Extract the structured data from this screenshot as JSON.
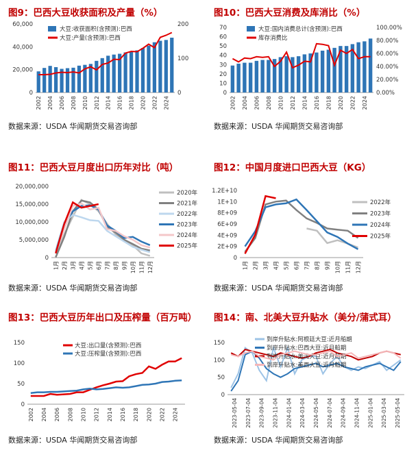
{
  "source_text": "数据来源：USDA 华闻期货交易咨询部",
  "chart_data": [
    {
      "id": "fig9",
      "type": "bar+line",
      "title": "图9：巴西大豆收获面积及产量（%）",
      "categories": [
        "2002",
        "2003",
        "2004",
        "2005",
        "2006",
        "2007",
        "2008",
        "2009",
        "2010",
        "2011",
        "2012",
        "2013",
        "2014",
        "2015",
        "2016",
        "2017",
        "2018",
        "2019",
        "2020",
        "2021",
        "2022",
        "2023",
        "2024",
        "2025"
      ],
      "x_tick_labels": [
        "2002",
        "2004",
        "2006",
        "2008",
        "2010",
        "2012",
        "2014",
        "2016",
        "2018",
        "2020",
        "2022",
        "2024"
      ],
      "series": [
        {
          "name": "大豆:收获面积(含预测):巴西",
          "kind": "bar",
          "axis": "left",
          "color": "#2e75b6",
          "values": [
            18500,
            21500,
            23300,
            22200,
            20700,
            21300,
            21700,
            23500,
            24200,
            25000,
            27700,
            30100,
            32200,
            33200,
            33900,
            35100,
            35800,
            36900,
            38900,
            41000,
            44000,
            45300,
            46000,
            48000
          ]
        },
        {
          "name": "大豆:产量(含预测):巴西",
          "kind": "line",
          "axis": "right",
          "color": "#e00000",
          "values": [
            52,
            52,
            53,
            57,
            59,
            58,
            60,
            57,
            69,
            75,
            66,
            82,
            86,
            97,
            96,
            115,
            120,
            119,
            129,
            141,
            131,
            161,
            167,
            175
          ]
        }
      ],
      "left_axis": {
        "min": 0,
        "max": 60000,
        "ticks": [
          "0",
          "20,000",
          "40,000",
          "60,000"
        ]
      },
      "right_axis": {
        "min": 0,
        "max": 200,
        "ticks": [
          "0",
          "100",
          "200"
        ]
      }
    },
    {
      "id": "fig10",
      "type": "bar+line",
      "title": "图10：巴西大豆消费及库消比（%）",
      "categories": [
        "2002",
        "2003",
        "2004",
        "2005",
        "2006",
        "2007",
        "2008",
        "2009",
        "2010",
        "2011",
        "2012",
        "2013",
        "2014",
        "2015",
        "2016",
        "2017",
        "2018",
        "2019",
        "2020",
        "2021",
        "2022",
        "2023",
        "2024",
        "2025"
      ],
      "x_tick_labels": [
        "2002",
        "2004",
        "2006",
        "2008",
        "2010",
        "2012",
        "2014",
        "2016",
        "2018",
        "2020",
        "2022",
        "2024"
      ],
      "series": [
        {
          "name": "大豆:国内消费总计(含预测):巴西",
          "kind": "bar",
          "axis": "left",
          "color": "#2e75b6",
          "values": [
            29,
            31,
            32,
            32,
            34,
            35,
            35,
            36,
            38,
            39,
            38,
            39,
            41,
            42,
            43,
            45,
            46,
            48,
            50,
            50,
            52,
            54,
            55,
            58
          ]
        },
        {
          "name": "库存消费比",
          "kind": "line",
          "axis": "right",
          "color": "#e00000",
          "percent": true,
          "values": [
            52,
            47,
            53,
            52,
            55,
            54,
            55,
            40,
            48,
            62,
            38,
            42,
            48,
            47,
            75,
            74,
            72,
            42,
            65,
            60,
            66,
            52,
            55,
            55
          ]
        }
      ],
      "left_axis": {
        "min": 0,
        "max": 70,
        "ticks": [
          "0",
          "10",
          "20",
          "30",
          "40",
          "50",
          "60",
          "70"
        ]
      },
      "right_axis": {
        "min": 0,
        "max": 100,
        "ticks": [
          "0.00%",
          "20.00%",
          "40.00%",
          "60.00%",
          "80.00%",
          "100.00%"
        ]
      }
    },
    {
      "id": "fig11",
      "type": "line",
      "title": "图11：巴西大豆月度出口历年对比（吨）",
      "categories": [
        "1月",
        "2月",
        "3月",
        "4月",
        "5月",
        "6月",
        "7月",
        "8月",
        "9月",
        "10月",
        "11月",
        "12月"
      ],
      "series": [
        {
          "name": "2020年",
          "color": "#bfbfbf",
          "values": [
            1200000,
            6500000,
            11500000,
            16200000,
            15000000,
            13000000,
            9500000,
            6500000,
            5000000,
            3500000,
            1200000,
            500000
          ]
        },
        {
          "name": "2021年",
          "color": "#808080",
          "values": [
            100000,
            5800000,
            13000000,
            16000000,
            15500000,
            13500000,
            8500000,
            7000000,
            5000000,
            3800000,
            2500000,
            2000000
          ]
        },
        {
          "name": "2022年",
          "color": "#bdd7ee",
          "values": [
            2000000,
            10000000,
            12000000,
            11300000,
            10500000,
            10300000,
            7500000,
            6000000,
            4500000,
            3000000,
            2200000,
            1500000
          ]
        },
        {
          "name": "2023年",
          "color": "#2e75b6",
          "values": [
            1500000,
            9500000,
            13000000,
            14500000,
            14700000,
            13500000,
            9000000,
            7500000,
            5500000,
            5800000,
            4500000,
            3500000
          ]
        },
        {
          "name": "2024年",
          "color": "#f4c7c9",
          "values": [
            1500000,
            8000000,
            14500000,
            15200000,
            13500000,
            14000000,
            8000000,
            7500000,
            6000000,
            5000000,
            3500000,
            2800000
          ]
        },
        {
          "name": "2025年",
          "color": "#e00000",
          "values": [
            1200000,
            9500000,
            15500000,
            14000000,
            14500000,
            15000000,
            null,
            null,
            null,
            null,
            null,
            null
          ]
        }
      ],
      "y_axis": {
        "min": 0,
        "max": 20000000,
        "ticks": [
          "0",
          "5,000,000",
          "10,000,000",
          "15,000,000",
          "20,000,000"
        ]
      }
    },
    {
      "id": "fig12",
      "type": "line",
      "title": "图12：中国月度进口巴西大豆（KG）",
      "categories": [
        "1月",
        "2月",
        "3月",
        "4月",
        "5月",
        "6月",
        "7月",
        "8月",
        "9月",
        "10月",
        "11月",
        "12月"
      ],
      "series": [
        {
          "name": "2022年",
          "color": "#bfbfbf",
          "values": [
            null,
            null,
            null,
            null,
            null,
            null,
            5200000000,
            4800000000,
            2600000000,
            3100000000,
            2500000000,
            1800000000
          ]
        },
        {
          "name": "2023年",
          "color": "#808080",
          "values": [
            1000000000,
            3500000000,
            9500000000,
            10000000000,
            10200000000,
            8500000000,
            7000000000,
            6200000000,
            5200000000,
            5000000000,
            4800000000,
            3500000000
          ]
        },
        {
          "name": "2024年",
          "color": "#2e75b6",
          "values": [
            2000000000,
            4700000000,
            9000000000,
            9500000000,
            9700000000,
            10400000000,
            8500000000,
            6500000000,
            4500000000,
            3700000000,
            2500000000,
            1500000000
          ]
        },
        {
          "name": "2025年",
          "color": "#e00000",
          "values": [
            700000000,
            4100000000,
            11000000000,
            10600000000,
            null,
            null,
            null,
            null,
            null,
            null,
            null,
            null
          ]
        }
      ],
      "y_axis": {
        "min": 0,
        "max": 12000000000,
        "ticks": [
          "0",
          "2E+09",
          "4E+09",
          "6E+09",
          "8E+09",
          "1E+10",
          "1.2E+10"
        ]
      }
    },
    {
      "id": "fig13",
      "type": "line",
      "title": "图13：巴西大豆历年出口及压榨量（百万吨）",
      "categories": [
        "2002",
        "2003",
        "2004",
        "2005",
        "2006",
        "2007",
        "2008",
        "2009",
        "2010",
        "2011",
        "2012",
        "2013",
        "2014",
        "2015",
        "2016",
        "2017",
        "2018",
        "2019",
        "2020",
        "2021",
        "2022",
        "2023",
        "2024",
        "2025"
      ],
      "x_tick_labels": [
        "2002",
        "2004",
        "2006",
        "2008",
        "2010",
        "2012",
        "2014",
        "2016",
        "2018",
        "2020",
        "2022",
        "2024"
      ],
      "series": [
        {
          "name": "大豆:出口量(含预测):巴西",
          "color": "#e00000",
          "values": [
            20,
            20,
            20,
            25,
            23,
            24,
            25,
            29,
            29,
            35,
            41,
            46,
            50,
            55,
            56,
            68,
            73,
            76,
            92,
            86,
            96,
            104,
            104,
            112
          ]
        },
        {
          "name": "大豆:压榨量(含预测):巴西",
          "color": "#2e75b6",
          "values": [
            27,
            29,
            29,
            30,
            30,
            31,
            32,
            33,
            36,
            38,
            36,
            37,
            39,
            41,
            40,
            41,
            44,
            47,
            48,
            50,
            54,
            55,
            57,
            58
          ]
        }
      ],
      "y_axis": {
        "min": 0,
        "max": 150,
        "ticks": [
          "0",
          "50",
          "100",
          "150"
        ]
      }
    },
    {
      "id": "fig14",
      "type": "line",
      "title": "图14：南、北美大豆升贴水（美分/蒲式耳）",
      "x_tick_labels": [
        "2023-05-04",
        "2023-07-04",
        "2023-09-04",
        "2023-11-04",
        "2024-01-04",
        "2024-03-04",
        "2024-05-04",
        "2024-07-04",
        "2024-09-04",
        "2024-11-04",
        "2025-01-04",
        "2025-03-04",
        "2025-05-04"
      ],
      "series": [
        {
          "name": "到岸升贴水:阿根廷大豆:近月船期",
          "color": "#9dc3e6",
          "values": [
            20,
            60,
            135,
            120,
            70,
            40,
            135,
            80,
            135,
            60,
            100,
            110,
            110,
            60,
            90,
            110,
            80,
            70,
            80,
            75,
            85,
            95,
            70,
            85,
            100
          ]
        },
        {
          "name": "到岸升贴水:巴西大豆:近月船期",
          "color": "#2e75b6",
          "values": [
            10,
            40,
            115,
            125,
            105,
            75,
            60,
            50,
            60,
            75,
            80,
            85,
            90,
            80,
            85,
            90,
            80,
            75,
            70,
            80,
            85,
            90,
            80,
            70,
            95
          ]
        },
        {
          "name": "到岸升贴水:美湾大豆:近月船期",
          "color": "#c00000",
          "values": [
            120,
            110,
            130,
            125,
            120,
            115,
            110,
            120,
            115,
            110,
            105,
            110,
            120,
            125,
            130,
            120,
            115,
            110,
            100,
            105,
            110,
            120,
            125,
            120,
            115
          ]
        },
        {
          "name": "到岸升贴水:美西大豆:近月船期",
          "color": "#f4b6b8",
          "values": [
            115,
            110,
            120,
            125,
            110,
            105,
            100,
            115,
            120,
            125,
            120,
            115,
            115,
            120,
            125,
            110,
            115,
            120,
            105,
            110,
            115,
            120,
            125,
            120,
            105
          ]
        }
      ],
      "y_axis": {
        "min": 0,
        "max": 150,
        "ticks": [
          "0",
          "50",
          "100",
          "150"
        ]
      }
    }
  ]
}
